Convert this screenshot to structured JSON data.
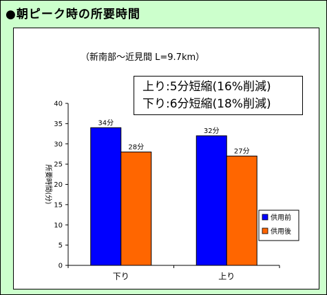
{
  "title": "●朝ピーク時の所要時間",
  "subtitle": "（新南部～近見間 L=9.7km）",
  "callout": {
    "line1": "上り:5分短縮(16%削減)",
    "line2": "下り:6分短縮(18%削減)"
  },
  "chart_data": {
    "type": "bar",
    "categories": [
      "下り",
      "上り"
    ],
    "series": [
      {
        "name": "供用前",
        "values": [
          34,
          32
        ],
        "labels": [
          "34分",
          "32分"
        ],
        "color": "#0000ff"
      },
      {
        "name": "供用後",
        "values": [
          28,
          27
        ],
        "labels": [
          "28分",
          "27分"
        ],
        "color": "#ff6600"
      }
    ],
    "ylabel": "所要時間(分)",
    "ylim": [
      0,
      40
    ],
    "yticks": [
      0,
      5,
      10,
      15,
      20,
      25,
      30,
      35,
      40
    ],
    "legend_position": "right",
    "grid": false
  }
}
